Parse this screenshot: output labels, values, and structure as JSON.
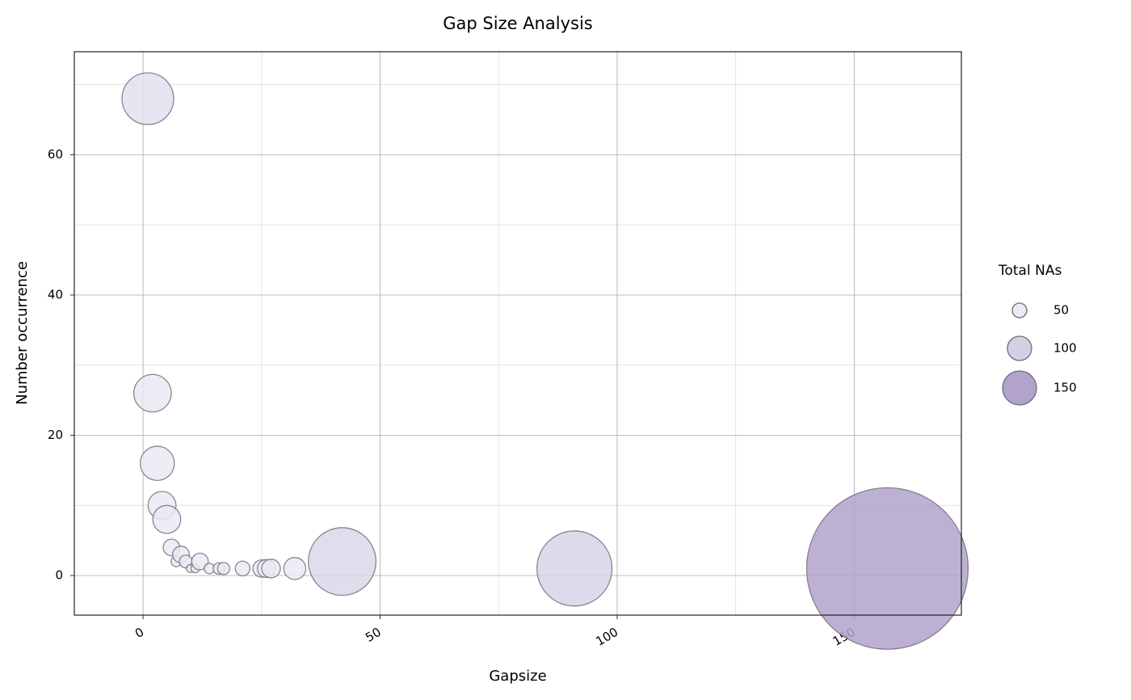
{
  "chart_data": {
    "type": "bubble",
    "title": "Gap Size Analysis",
    "x_label": "Gapsize",
    "y_label": "Number occurrence",
    "x": [
      1,
      2,
      3,
      4,
      5,
      6,
      7,
      8,
      9,
      10,
      11,
      12,
      14,
      16,
      17,
      21,
      25,
      26,
      27,
      32,
      42,
      91,
      157
    ],
    "values": [
      68,
      26,
      16,
      10,
      8,
      4,
      2,
      3,
      2,
      1,
      1,
      2,
      1,
      1,
      1,
      1,
      1,
      1,
      1,
      1,
      2,
      1,
      1
    ],
    "sizes": [
      68,
      52,
      48,
      40,
      40,
      24,
      14,
      24,
      18,
      10,
      11,
      24,
      14,
      16,
      17,
      21,
      25,
      26,
      27,
      32,
      84,
      91,
      157
    ],
    "xlim": [
      -14.5,
      172.6
    ],
    "ylim": [
      -5.65,
      74.7
    ],
    "xticks": [
      0,
      50,
      100,
      150
    ],
    "yticks": [
      0,
      20,
      40,
      60
    ],
    "x_minor_ticks": [
      25,
      75,
      125
    ],
    "y_minor_ticks": [
      10,
      30,
      50,
      70
    ],
    "grid": true,
    "legend": {
      "title": "Total NAs",
      "values": [
        50,
        100,
        150
      ],
      "colors": [
        "#ebe9f3",
        "#d4cfe5",
        "#b2a3cb"
      ]
    }
  }
}
